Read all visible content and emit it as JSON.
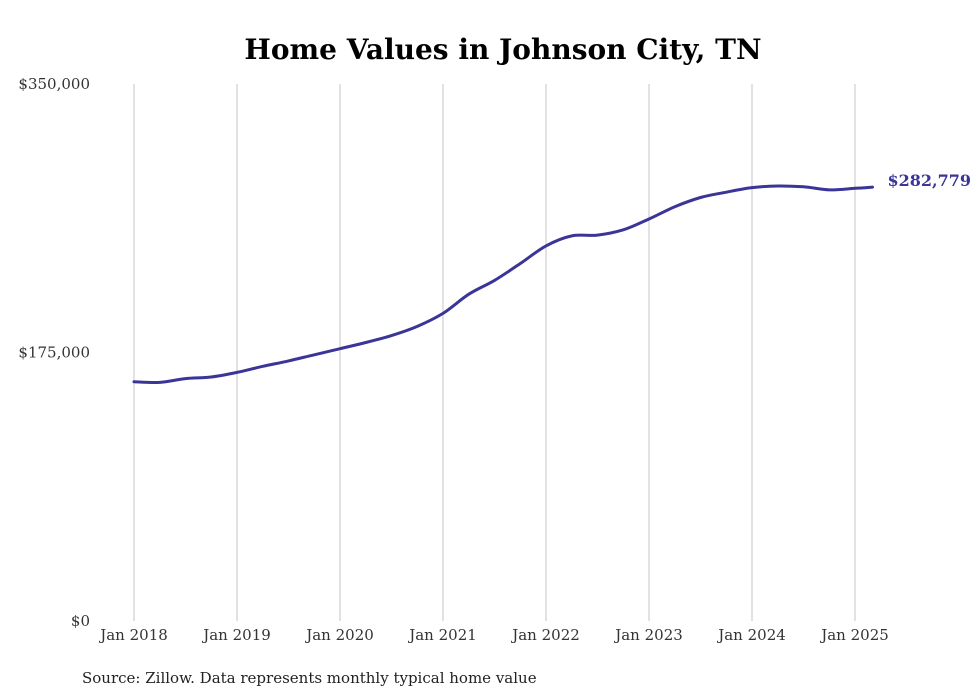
{
  "chart_data": {
    "type": "line",
    "title": "Home Values in Johnson City, TN",
    "xlabel": "",
    "ylabel": "",
    "source": "Source: Zillow. Data represents monthly typical home value",
    "ylim": [
      0,
      350000
    ],
    "y_ticks": [
      {
        "value": 0,
        "label": "$0"
      },
      {
        "value": 175000,
        "label": "$175,000"
      },
      {
        "value": 350000,
        "label": "$350,000"
      }
    ],
    "x_ticks": [
      {
        "value": 2018,
        "label": "Jan 2018"
      },
      {
        "value": 2019,
        "label": "Jan 2019"
      },
      {
        "value": 2020,
        "label": "Jan 2020"
      },
      {
        "value": 2021,
        "label": "Jan 2021"
      },
      {
        "value": 2022,
        "label": "Jan 2022"
      },
      {
        "value": 2023,
        "label": "Jan 2023"
      },
      {
        "value": 2024,
        "label": "Jan 2024"
      },
      {
        "value": 2025,
        "label": "Jan 2025"
      }
    ],
    "xlim": [
      2018,
      2025
    ],
    "grid": "vertical",
    "series_color": "#3a3596",
    "end_label": "$282,779",
    "series": [
      {
        "x": [
          2018.0,
          2018.25,
          2018.5,
          2018.75,
          2019.0,
          2019.25,
          2019.5,
          2019.75,
          2020.0,
          2020.25,
          2020.5,
          2020.75,
          2021.0,
          2021.25,
          2021.5,
          2021.75,
          2022.0,
          2022.25,
          2022.5,
          2022.75,
          2023.0,
          2023.25,
          2023.5,
          2023.75,
          2024.0,
          2024.25,
          2024.5,
          2024.75,
          2025.0,
          2025.17
        ],
        "y": [
          156000,
          155500,
          158000,
          159000,
          162000,
          166000,
          169500,
          173500,
          177500,
          181500,
          186000,
          192000,
          200500,
          213000,
          222000,
          233000,
          244500,
          251000,
          251500,
          255000,
          262000,
          270000,
          276000,
          279500,
          282500,
          283500,
          283000,
          281000,
          282000,
          282779
        ]
      }
    ]
  }
}
